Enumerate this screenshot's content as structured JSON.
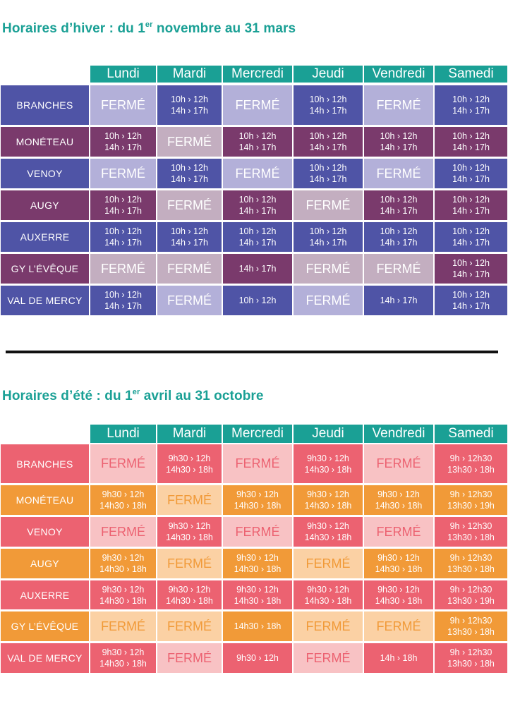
{
  "closed_label": "FERMÉ",
  "colors": {
    "teal": "#1aa095",
    "winter_blue": "#4f54a6",
    "winter_purple": "#7a3a6c",
    "winter_blue_light": "#b3b0d9",
    "winter_purple_light": "#c3aec0",
    "summer_red": "#ec6271",
    "summer_orange": "#f19a38",
    "summer_red_light": "#f8c2c4",
    "summer_orange_light": "#fbd1a4"
  },
  "days": [
    "Lundi",
    "Mardi",
    "Mercredi",
    "Jeudi",
    "Vendredi",
    "Samedi"
  ],
  "winter": {
    "title_prefix": "Horaires d’hiver : du 1",
    "title_sup": "er",
    "title_suffix": " novembre au 31 mars",
    "rows": [
      {
        "name": "BRANCHES",
        "cells": [
          null,
          [
            "10h › 12h",
            "14h › 17h"
          ],
          null,
          [
            "10h › 12h",
            "14h › 17h"
          ],
          null,
          [
            "10h › 12h",
            "14h › 17h"
          ]
        ]
      },
      {
        "name": "MONÉTEAU",
        "cells": [
          [
            "10h › 12h",
            "14h › 17h"
          ],
          null,
          [
            "10h › 12h",
            "14h › 17h"
          ],
          [
            "10h › 12h",
            "14h › 17h"
          ],
          [
            "10h › 12h",
            "14h › 17h"
          ],
          [
            "10h › 12h",
            "14h › 17h"
          ]
        ]
      },
      {
        "name": "VENOY",
        "cells": [
          null,
          [
            "10h › 12h",
            "14h › 17h"
          ],
          null,
          [
            "10h › 12h",
            "14h › 17h"
          ],
          null,
          [
            "10h › 12h",
            "14h › 17h"
          ]
        ]
      },
      {
        "name": "AUGY",
        "cells": [
          [
            "10h › 12h",
            "14h › 17h"
          ],
          null,
          [
            "10h › 12h",
            "14h › 17h"
          ],
          null,
          [
            "10h › 12h",
            "14h › 17h"
          ],
          [
            "10h › 12h",
            "14h › 17h"
          ]
        ]
      },
      {
        "name": "AUXERRE",
        "cells": [
          [
            "10h › 12h",
            "14h › 17h"
          ],
          [
            "10h › 12h",
            "14h › 17h"
          ],
          [
            "10h › 12h",
            "14h › 17h"
          ],
          [
            "10h › 12h",
            "14h › 17h"
          ],
          [
            "10h › 12h",
            "14h › 17h"
          ],
          [
            "10h › 12h",
            "14h › 17h"
          ]
        ]
      },
      {
        "name": "GY L’ÉVÊQUE",
        "cells": [
          null,
          null,
          [
            "14h › 17h"
          ],
          null,
          null,
          [
            "10h › 12h",
            "14h › 17h"
          ]
        ]
      },
      {
        "name": "VAL DE MERCY",
        "cells": [
          [
            "10h › 12h",
            "14h › 17h"
          ],
          null,
          [
            "10h › 12h"
          ],
          null,
          [
            "14h › 17h"
          ],
          [
            "10h › 12h",
            "14h › 17h"
          ]
        ]
      }
    ]
  },
  "summer": {
    "title_prefix": "Horaires d’été : du 1",
    "title_sup": "er",
    "title_suffix": " avril au 31 octobre",
    "rows": [
      {
        "name": "BRANCHES",
        "cells": [
          null,
          [
            "9h30 › 12h",
            "14h30 › 18h"
          ],
          null,
          [
            "9h30 › 12h",
            "14h30 › 18h"
          ],
          null,
          [
            "9h › 12h30",
            "13h30 › 18h"
          ]
        ]
      },
      {
        "name": "MONÉTEAU",
        "cells": [
          [
            "9h30 › 12h",
            "14h30 › 18h"
          ],
          null,
          [
            "9h30 › 12h",
            "14h30 › 18h"
          ],
          [
            "9h30 › 12h",
            "14h30 › 18h"
          ],
          [
            "9h30 › 12h",
            "14h30 › 18h"
          ],
          [
            "9h › 12h30",
            "13h30 › 19h"
          ]
        ]
      },
      {
        "name": "VENOY",
        "cells": [
          null,
          [
            "9h30 › 12h",
            "14h30 › 18h"
          ],
          null,
          [
            "9h30 › 12h",
            "14h30 › 18h"
          ],
          null,
          [
            "9h › 12h30",
            "13h30 › 18h"
          ]
        ]
      },
      {
        "name": "AUGY",
        "cells": [
          [
            "9h30 › 12h",
            "14h30 › 18h"
          ],
          null,
          [
            "9h30 › 12h",
            "14h30 › 18h"
          ],
          null,
          [
            "9h30 › 12h",
            "14h30 › 18h"
          ],
          [
            "9h › 12h30",
            "13h30 › 18h"
          ]
        ]
      },
      {
        "name": "AUXERRE",
        "cells": [
          [
            "9h30 › 12h",
            "14h30 › 18h"
          ],
          [
            "9h30 › 12h",
            "14h30 › 18h"
          ],
          [
            "9h30 › 12h",
            "14h30 › 18h"
          ],
          [
            "9h30 › 12h",
            "14h30 › 18h"
          ],
          [
            "9h30 › 12h",
            "14h30 › 18h"
          ],
          [
            "9h › 12h30",
            "13h30 › 19h"
          ]
        ]
      },
      {
        "name": "GY L’ÉVÊQUE",
        "cells": [
          null,
          null,
          [
            "14h30 › 18h"
          ],
          null,
          null,
          [
            "9h › 12h30",
            "13h30 › 18h"
          ]
        ]
      },
      {
        "name": "VAL DE MERCY",
        "cells": [
          [
            "9h30 › 12h",
            "14h30 › 18h"
          ],
          null,
          [
            "9h30 › 12h"
          ],
          null,
          [
            "14h › 18h"
          ],
          [
            "9h › 12h30",
            "13h30 › 18h"
          ]
        ]
      }
    ]
  }
}
